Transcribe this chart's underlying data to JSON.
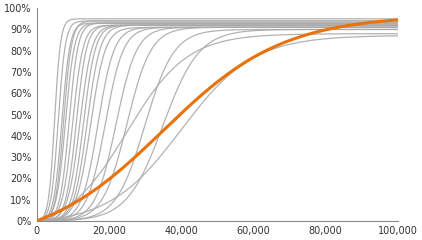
{
  "title": "",
  "xlim": [
    0,
    100000
  ],
  "ylim": [
    0,
    1.0
  ],
  "xlabel": "",
  "ylabel": "",
  "bg_color": "#ffffff",
  "grid": false,
  "orange_color": "#E8720C",
  "gray_color": "#AAAAAA",
  "orange_lw": 2.2,
  "gray_lw": 0.9,
  "xticks": [
    0,
    20000,
    40000,
    60000,
    80000,
    100000
  ],
  "yticks": [
    0.0,
    0.1,
    0.2,
    0.3,
    0.4,
    0.5,
    0.6,
    0.7,
    0.8,
    0.9,
    1.0
  ],
  "gray_curves": [
    {
      "midpoint": 5000,
      "steepness": 0.0012,
      "max_val": 0.95
    },
    {
      "midpoint": 6000,
      "steepness": 0.001,
      "max_val": 0.94
    },
    {
      "midpoint": 7000,
      "steepness": 0.0009,
      "max_val": 0.93
    },
    {
      "midpoint": 7500,
      "steepness": 0.0009,
      "max_val": 0.94
    },
    {
      "midpoint": 8000,
      "steepness": 0.0008,
      "max_val": 0.93
    },
    {
      "midpoint": 9000,
      "steepness": 0.0008,
      "max_val": 0.93
    },
    {
      "midpoint": 10000,
      "steepness": 0.0007,
      "max_val": 0.92
    },
    {
      "midpoint": 11000,
      "steepness": 0.0007,
      "max_val": 0.92
    },
    {
      "midpoint": 12000,
      "steepness": 0.0006,
      "max_val": 0.92
    },
    {
      "midpoint": 13000,
      "steepness": 0.0006,
      "max_val": 0.92
    },
    {
      "midpoint": 14000,
      "steepness": 0.00055,
      "max_val": 0.92
    },
    {
      "midpoint": 15000,
      "steepness": 0.0005,
      "max_val": 0.91
    },
    {
      "midpoint": 17000,
      "steepness": 0.00045,
      "max_val": 0.91
    },
    {
      "midpoint": 19000,
      "steepness": 0.0004,
      "max_val": 0.91
    },
    {
      "midpoint": 22000,
      "steepness": 0.00035,
      "max_val": 0.91
    },
    {
      "midpoint": 25000,
      "steepness": 0.0003,
      "max_val": 0.91
    },
    {
      "midpoint": 30000,
      "steepness": 0.00025,
      "max_val": 0.9
    },
    {
      "midpoint": 35000,
      "steepness": 0.0002,
      "max_val": 0.9
    },
    {
      "midpoint": 25000,
      "steepness": 0.00012,
      "max_val": 0.88
    },
    {
      "midpoint": 40000,
      "steepness": 0.0001,
      "max_val": 0.87
    }
  ],
  "orange_curve": {
    "midpoint": 35000,
    "steepness": 6e-05,
    "max_val": 0.945
  }
}
